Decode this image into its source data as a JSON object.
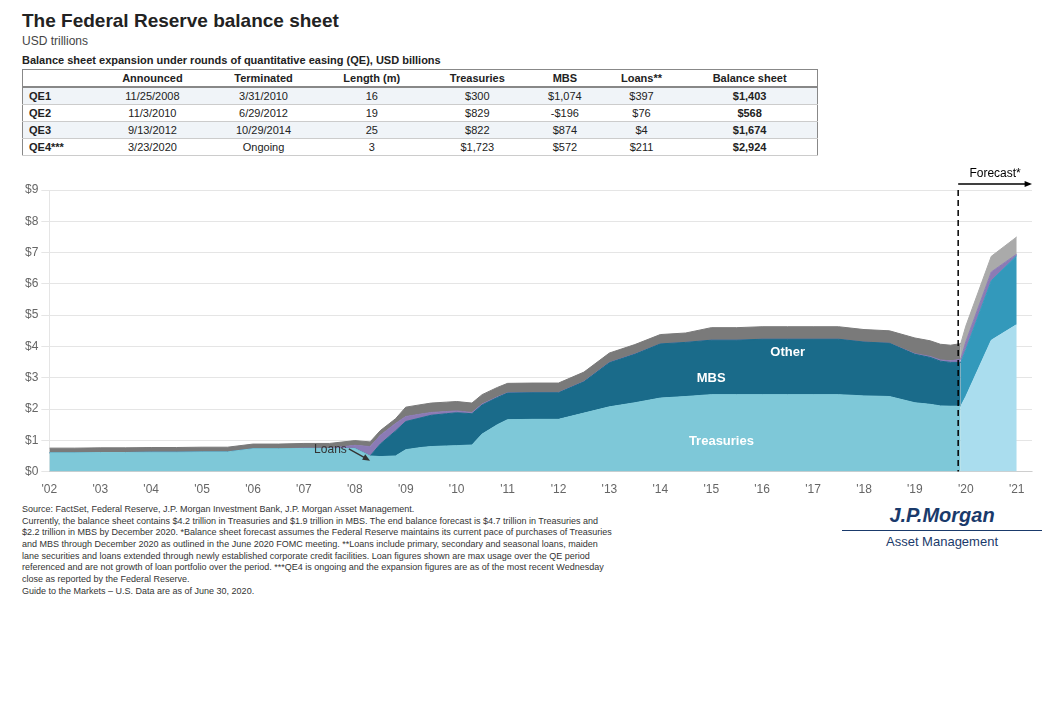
{
  "chart_data": {
    "type": "area",
    "title": "The Federal Reserve balance sheet",
    "subtitle": "USD trillions",
    "stacked": true,
    "grid": "y",
    "x": [
      2002,
      2002.5,
      2003,
      2003.5,
      2004,
      2004.5,
      2005,
      2005.5,
      2006,
      2006.5,
      2007,
      2007.5,
      2008,
      2008.3,
      2008.5,
      2008.8,
      2009,
      2009.3,
      2009.5,
      2009.8,
      2010,
      2010.3,
      2010.5,
      2010.8,
      2011,
      2011.5,
      2012,
      2012.5,
      2013,
      2013.5,
      2014,
      2014.5,
      2015,
      2015.5,
      2016,
      2016.5,
      2017,
      2017.5,
      2018,
      2018.5,
      2019,
      2019.3,
      2019.5,
      2019.7,
      2019.9,
      2020,
      2020.5,
      2021
    ],
    "series": [
      {
        "name": "Treasuries",
        "color": "#7ec8d8",
        "forecast_color": "#aaddee",
        "values": [
          0.6,
          0.6,
          0.61,
          0.61,
          0.62,
          0.62,
          0.63,
          0.63,
          0.73,
          0.73,
          0.74,
          0.74,
          0.74,
          0.5,
          0.48,
          0.5,
          0.7,
          0.77,
          0.8,
          0.82,
          0.83,
          0.85,
          1.2,
          1.5,
          1.66,
          1.67,
          1.67,
          1.87,
          2.07,
          2.2,
          2.35,
          2.4,
          2.46,
          2.46,
          2.46,
          2.46,
          2.46,
          2.46,
          2.42,
          2.4,
          2.2,
          2.15,
          2.1,
          2.09,
          2.09,
          2.4,
          4.2,
          4.7
        ]
      },
      {
        "name": "MBS",
        "color": "#1a6b8a",
        "forecast_color": "#3399bb",
        "values": [
          0,
          0,
          0,
          0,
          0,
          0,
          0,
          0,
          0,
          0,
          0,
          0,
          0,
          0,
          0.4,
          0.8,
          0.9,
          0.95,
          1,
          1.03,
          1.05,
          1,
          0.93,
          0.87,
          0.85,
          0.85,
          0.85,
          1,
          1.41,
          1.55,
          1.73,
          1.73,
          1.74,
          1.74,
          1.77,
          1.77,
          1.77,
          1.77,
          1.72,
          1.7,
          1.55,
          1.5,
          1.43,
          1.4,
          1.4,
          1.5,
          1.9,
          2.2
        ]
      },
      {
        "name": "Loans",
        "color": "#8b7bb5",
        "forecast_color": "#8b7bb5",
        "values": [
          0,
          0,
          0,
          0,
          0,
          0,
          0,
          0,
          0,
          0,
          0.01,
          0.01,
          0.1,
          0.3,
          0.28,
          0.24,
          0.16,
          0.12,
          0.09,
          0.07,
          0.06,
          0.04,
          0.03,
          0.02,
          0.01,
          0.01,
          0.01,
          0.01,
          0.01,
          0.01,
          0,
          0,
          0,
          0,
          0,
          0,
          0,
          0,
          0,
          0,
          0.02,
          0.03,
          0.04,
          0.05,
          0.1,
          0.25,
          0.28,
          0.05
        ]
      },
      {
        "name": "Other",
        "color": "#7a7a7a",
        "forecast_color": "#aaaaaa",
        "values": [
          0.15,
          0.15,
          0.15,
          0.15,
          0.15,
          0.15,
          0.15,
          0.15,
          0.15,
          0.15,
          0.15,
          0.15,
          0.15,
          0.15,
          0.15,
          0.15,
          0.3,
          0.3,
          0.3,
          0.3,
          0.3,
          0.3,
          0.3,
          0.3,
          0.3,
          0.3,
          0.3,
          0.3,
          0.3,
          0.3,
          0.3,
          0.3,
          0.4,
          0.4,
          0.4,
          0.4,
          0.4,
          0.4,
          0.4,
          0.4,
          0.5,
          0.5,
          0.5,
          0.5,
          0.5,
          0.5,
          0.5,
          0.55
        ]
      }
    ],
    "forecast_from": 2019.9,
    "forecast_line": 2019.85,
    "forecast_label": "Forecast*",
    "xlim": [
      2002,
      2021.3
    ],
    "xticks": [
      {
        "value": 2002,
        "label": "'02"
      },
      {
        "value": 2003,
        "label": "'03"
      },
      {
        "value": 2004,
        "label": "'04"
      },
      {
        "value": 2005,
        "label": "'05"
      },
      {
        "value": 2006,
        "label": "'06"
      },
      {
        "value": 2007,
        "label": "'07"
      },
      {
        "value": 2008,
        "label": "'08"
      },
      {
        "value": 2009,
        "label": "'09"
      },
      {
        "value": 2010,
        "label": "'10"
      },
      {
        "value": 2011,
        "label": "'11"
      },
      {
        "value": 2012,
        "label": "'12"
      },
      {
        "value": 2013,
        "label": "'13"
      },
      {
        "value": 2014,
        "label": "'14"
      },
      {
        "value": 2015,
        "label": "'15"
      },
      {
        "value": 2016,
        "label": "'16"
      },
      {
        "value": 2017,
        "label": "'17"
      },
      {
        "value": 2018,
        "label": "'18"
      },
      {
        "value": 2019,
        "label": "'19"
      },
      {
        "value": 2020,
        "label": "'20"
      },
      {
        "value": 2021,
        "label": "'21"
      }
    ],
    "ylim": [
      0,
      9
    ],
    "yticks": [
      {
        "value": 0,
        "label": "$0"
      },
      {
        "value": 1,
        "label": "$1"
      },
      {
        "value": 2,
        "label": "$2"
      },
      {
        "value": 3,
        "label": "$3"
      },
      {
        "value": 4,
        "label": "$4"
      },
      {
        "value": 5,
        "label": "$5"
      },
      {
        "value": 6,
        "label": "$6"
      },
      {
        "value": 7,
        "label": "$7"
      },
      {
        "value": 8,
        "label": "$8"
      },
      {
        "value": 9,
        "label": "$9"
      }
    ],
    "annotations": [
      {
        "text": "Treasuries",
        "x": 2015.2,
        "y": 0.85
      },
      {
        "text": "MBS",
        "x": 2015.0,
        "y": 2.85
      },
      {
        "text": "Other",
        "x": 2016.5,
        "y": 3.7
      },
      {
        "text": "Loans",
        "x": 2007.2,
        "y": 0.6,
        "arrow_to": [
          2008.3,
          0.35
        ]
      }
    ],
    "table": {
      "title": "Balance sheet expansion under rounds of quantitative easing (QE), USD billions",
      "headers": [
        "",
        "Announced",
        "Terminated",
        "Length (m)",
        "Treasuries",
        "MBS",
        "Loans**",
        "Balance sheet"
      ],
      "rows": [
        [
          "QE1",
          "11/25/2008",
          "3/31/2010",
          "16",
          "$300",
          "$1,074",
          "$397",
          "$1,403"
        ],
        [
          "QE2",
          "11/3/2010",
          "6/29/2012",
          "19",
          "$829",
          "-$196",
          "$76",
          "$568"
        ],
        [
          "QE3",
          "9/13/2012",
          "10/29/2014",
          "25",
          "$822",
          "$874",
          "$4",
          "$1,674"
        ],
        [
          "QE4***",
          "3/23/2020",
          "Ongoing",
          "3",
          "$1,723",
          "$572",
          "$211",
          "$2,924"
        ]
      ]
    },
    "source": "Source: FactSet, Federal Reserve, J.P. Morgan Investment Bank, J.P. Morgan Asset Management.\nCurrently, the balance sheet contains $4.2 trillion in Treasuries and $1.9 trillion in MBS. The end balance forecast is $4.7 trillion in Treasuries and\n$2.2 trillion in MBS by December 2020. *Balance sheet forecast assumes the Federal Reserve maintains its current pace of purchases of Treasuries\nand MBS through December 2020 as outlined in the June 2020 FOMC meeting. **Loans include primary, secondary and seasonal loans, maiden\nlane securities and loans extended through newly established corporate credit facilities. Loan figures shown are max usage over the QE period\nreferenced and are not growth of loan portfolio over the period. ***QE4 is ongoing and the expansion figures are as of the most recent Wednesday\nclose as reported by the Federal Reserve.\nGuide to the Markets – U.S. Data are as of June 30, 2020.",
    "logo": [
      "J.P.Morgan",
      "Asset Management"
    ]
  }
}
